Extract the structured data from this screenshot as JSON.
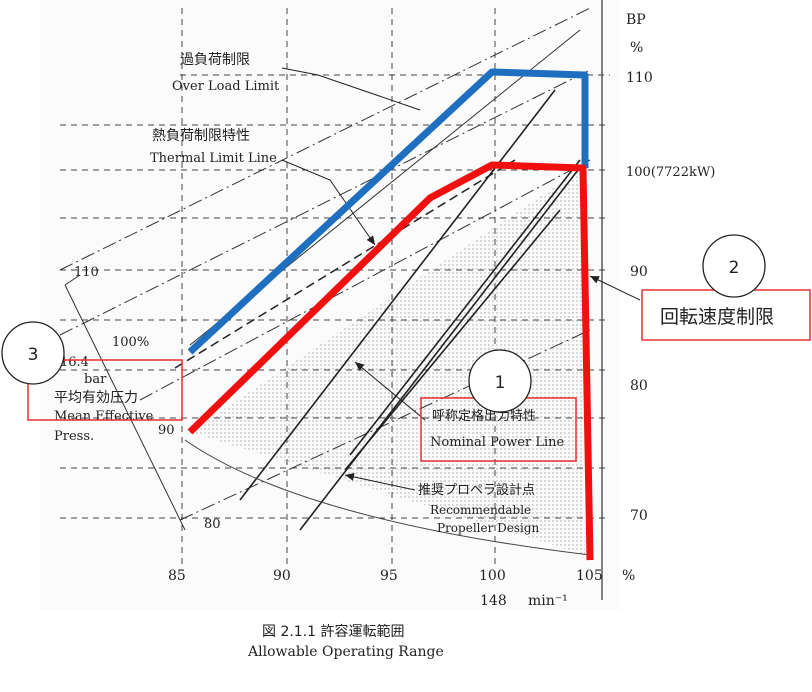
{
  "diagram": {
    "caption_jp": "図 2.1.1 許容運転範囲",
    "caption_en": "Allowable Operating Range",
    "x_axis": {
      "ticks": [
        "85",
        "90",
        "95",
        "100",
        "105"
      ],
      "unit_pct": "%",
      "rpm_value": "148",
      "rpm_unit": "min⁻¹"
    },
    "y_axis": {
      "title": "BP",
      "unit": "%",
      "ticks": [
        "110",
        "100(7722kW)",
        "90",
        "80",
        "70"
      ]
    },
    "mep_ticks": [
      "110",
      "100%",
      "90",
      "80"
    ],
    "mep_label": {
      "value": "16.4",
      "unit": "bar"
    },
    "labels": {
      "overload_jp": "過負荷制限",
      "overload_en": "Over Load Limit",
      "thermal_jp": "熱負荷制限特性",
      "thermal_en": "Thermal Limit Line",
      "nominal_jp": "呼称定格出力特性",
      "nominal_en": "Nominal Power Line",
      "propeller_jp": "推奨プロペラ設計点",
      "propeller_en1": "Recommendable",
      "propeller_en2": "Propeller Design",
      "mep_jp": "平均有効圧力",
      "mep_en1": "Mean Effective",
      "mep_en2": "Press."
    },
    "callouts": [
      {
        "number": "1"
      },
      {
        "number": "2",
        "text": "回転速度制限"
      },
      {
        "number": "3"
      }
    ],
    "colors": {
      "overload_line": "#1f6fc1",
      "nominal_line": "#f01010",
      "annotation_box": "#e53030",
      "grid": "#333333"
    }
  }
}
